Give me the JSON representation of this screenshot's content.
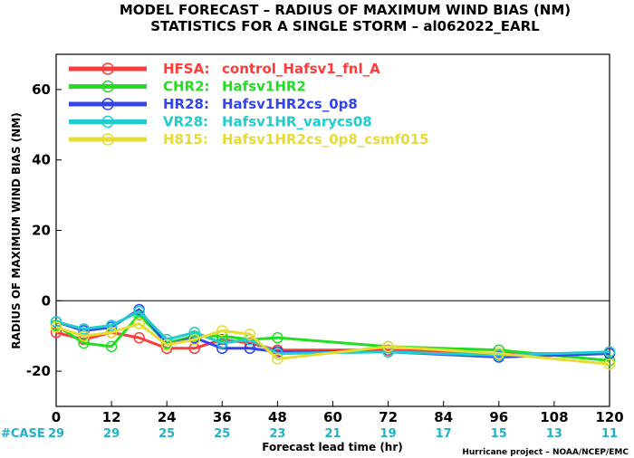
{
  "title_line1": "MODEL FORECAST – RADIUS OF MAXIMUM WIND BIAS (NM)",
  "title_line2": "STATISTICS FOR A SINGLE STORM – al062022_EARL",
  "footer": "Hurricane project – NOAA/NCEP/EMC",
  "case_header": "#CASE",
  "case_color": "#20b2c8",
  "chart_data": {
    "type": "line",
    "title": "MODEL FORECAST – RADIUS OF MAXIMUM WIND BIAS (NM)",
    "subtitle": "STATISTICS FOR A SINGLE STORM – al062022_EARL",
    "xlabel": "Forecast lead time (hr)",
    "ylabel": "RADIUS OF MAXIMUM WIND BIAS (NM)",
    "xlim": [
      0,
      120
    ],
    "ylim": [
      -30,
      70
    ],
    "x_ticks": [
      0,
      12,
      24,
      36,
      48,
      60,
      72,
      84,
      96,
      108,
      120
    ],
    "y_ticks": [
      -20,
      0,
      20,
      40,
      60
    ],
    "zero_line": 0,
    "legend_position": "top-left",
    "cases": [
      29,
      29,
      25,
      25,
      23,
      21,
      19,
      17,
      15,
      13,
      11
    ],
    "series": [
      {
        "name": "HFSA",
        "label": "control_Hafsv1_fnl_A",
        "color": "#ff3b3b",
        "x": [
          0,
          6,
          12,
          18,
          24,
          30,
          36,
          42,
          48,
          72,
          96,
          120
        ],
        "y": [
          -9,
          -11,
          -9,
          -10.5,
          -13.5,
          -13.5,
          -11,
          -12,
          -14,
          -14,
          -15,
          -15
        ]
      },
      {
        "name": "CHR2",
        "label": "Hafsv1HR2",
        "color": "#22dd22",
        "x": [
          0,
          6,
          12,
          18,
          24,
          30,
          36,
          42,
          48,
          72,
          96,
          120
        ],
        "y": [
          -7,
          -12,
          -13,
          -4,
          -12,
          -10,
          -10,
          -11,
          -10.5,
          -13,
          -14,
          -17
        ]
      },
      {
        "name": "HR28",
        "label": "Hafsv1HR2cs_0p8",
        "color": "#3344ee",
        "x": [
          0,
          6,
          12,
          18,
          24,
          30,
          36,
          42,
          48,
          72,
          96,
          120
        ],
        "y": [
          -6,
          -8.5,
          -7.5,
          -2.5,
          -12.5,
          -10.5,
          -13.5,
          -13.5,
          -14.5,
          -14.5,
          -16,
          -15
        ]
      },
      {
        "name": "VR28",
        "label": "Hafsv1HR_varycs08",
        "color": "#20cccc",
        "x": [
          0,
          6,
          12,
          18,
          24,
          30,
          36,
          42,
          48,
          72,
          96,
          120
        ],
        "y": [
          -6,
          -8,
          -7,
          -3,
          -11,
          -9,
          -12,
          -11,
          -15,
          -14.5,
          -15.5,
          -14.5
        ]
      },
      {
        "name": "H815",
        "label": "Hafsv1HR2cs_0p8_csmf015",
        "color": "#e6dc32",
        "x": [
          0,
          6,
          12,
          18,
          24,
          30,
          36,
          42,
          48,
          72,
          96,
          120
        ],
        "y": [
          -7.5,
          -10,
          -9,
          -6.5,
          -12.5,
          -11,
          -8.5,
          -9.5,
          -16.5,
          -13,
          -15,
          -18
        ]
      }
    ]
  }
}
